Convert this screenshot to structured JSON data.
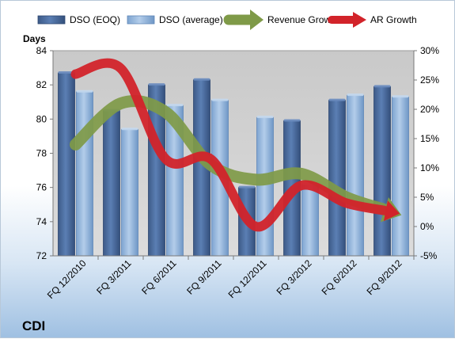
{
  "chart_data": {
    "type": "bar",
    "title": "",
    "y_axis_title": "Days",
    "brand_label": "CDI",
    "categories": [
      "FQ 12/2010",
      "FQ 3/2011",
      "FQ 6/2011",
      "FQ 9/2011",
      "FQ 12/2011",
      "FQ 3/2012",
      "FQ 6/2012",
      "FQ 9/2012"
    ],
    "ylim": [
      72,
      84
    ],
    "y_ticks": [
      "72",
      "74",
      "76",
      "78",
      "80",
      "82",
      "84"
    ],
    "y2lim": [
      -5,
      30
    ],
    "y2_ticks": [
      "-5%",
      "0%",
      "5%",
      "10%",
      "15%",
      "20%",
      "25%",
      "30%"
    ],
    "grid": false,
    "legend_position": "top",
    "bar_series": [
      {
        "name": "DSO (EOQ)",
        "color": "#4a6a9c",
        "values": [
          82.7,
          80.5,
          82.0,
          82.3,
          76.0,
          79.9,
          81.1,
          81.9
        ]
      },
      {
        "name": "DSO (average)",
        "color": "#8fb4dc",
        "values": [
          81.6,
          79.4,
          80.8,
          81.1,
          80.1,
          76.2,
          81.4,
          81.3
        ]
      }
    ],
    "line_series": [
      {
        "name": "Revenue Growth",
        "axis": "secondary",
        "color": "#7f9a48",
        "values": [
          14.0,
          21.0,
          19.5,
          10.5,
          8.0,
          9.0,
          5.0,
          2.5
        ]
      },
      {
        "name": "AR Growth",
        "axis": "secondary",
        "color": "#d2232a",
        "values": [
          26.0,
          27.0,
          11.5,
          11.5,
          0.0,
          7.0,
          4.0,
          2.5
        ]
      }
    ]
  }
}
